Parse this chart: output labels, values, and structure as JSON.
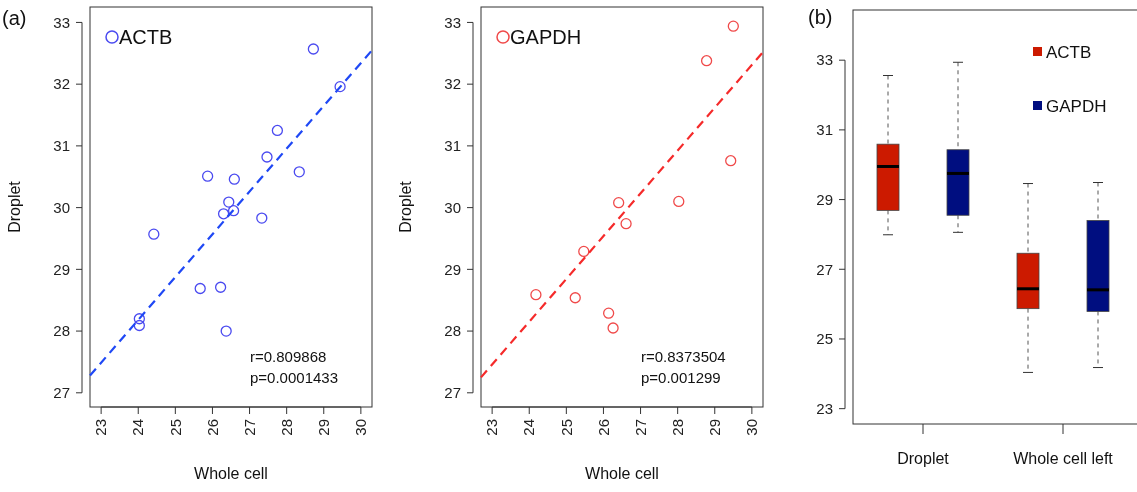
{
  "chart_data": [
    {
      "type": "scatter",
      "xlabel": "Whole cell",
      "ylabel": "Droplet",
      "xlim": [
        22.7,
        30.3
      ],
      "ylim": [
        26.77,
        33.25
      ],
      "xticks": [
        23,
        24,
        25,
        26,
        27,
        28,
        29,
        30
      ],
      "yticks": [
        27,
        28,
        29,
        30,
        31,
        32,
        33
      ],
      "grid": false,
      "legend": "top left",
      "annotations": [
        "(a)",
        "r=0.809868",
        "p=0.0001433"
      ],
      "series": [
        {
          "name": "ACTB",
          "marker": "circle",
          "color": "#4a4af0",
          "x": [
            28.72,
            29.44,
            27.75,
            27.47,
            28.34,
            25.87,
            26.59,
            26.44,
            26.3,
            26.57,
            27.33,
            24.42,
            25.67,
            26.22,
            24.03,
            24.03,
            26.37
          ],
          "values": [
            32.57,
            31.96,
            31.25,
            30.82,
            30.58,
            30.51,
            30.46,
            30.09,
            29.9,
            29.95,
            29.83,
            29.57,
            28.69,
            28.71,
            28.2,
            28.09,
            28.0
          ]
        },
        {
          "type": "line",
          "line_style": "dashed",
          "color": "#1f48f5",
          "x": [
            22.7,
            30.3
          ],
          "values": [
            27.28,
            32.55
          ]
        }
      ]
    },
    {
      "type": "scatter",
      "xlabel": "Whole cell",
      "ylabel": "Droplet",
      "xlim": [
        22.7,
        30.3
      ],
      "ylim": [
        26.77,
        33.25
      ],
      "xticks": [
        23,
        24,
        25,
        26,
        27,
        28,
        29,
        30
      ],
      "yticks": [
        27,
        28,
        29,
        30,
        31,
        32,
        33
      ],
      "grid": false,
      "legend": "top left",
      "annotations": [
        "r=0.8373504",
        "p=0.001299"
      ],
      "series": [
        {
          "name": "GAPDH",
          "marker": "circle",
          "color": "#f04a4a",
          "x": [
            29.5,
            28.78,
            29.43,
            28.03,
            26.41,
            26.61,
            25.47,
            24.18,
            25.24,
            26.14,
            26.26
          ],
          "values": [
            32.94,
            32.38,
            30.76,
            30.1,
            30.08,
            29.74,
            29.29,
            28.59,
            28.54,
            28.29,
            28.05
          ]
        },
        {
          "type": "line",
          "line_style": "dashed",
          "color": "#f52a2a",
          "x": [
            22.7,
            30.3
          ],
          "values": [
            27.25,
            32.52
          ]
        }
      ]
    },
    {
      "type": "box",
      "categories": [
        "Droplet",
        "Whole cell left"
      ],
      "ylim": [
        22.56,
        34.44
      ],
      "yticks": [
        23,
        25,
        27,
        29,
        31,
        33
      ],
      "grid": false,
      "legend": "top right",
      "annotations": [
        "(b)"
      ],
      "series": [
        {
          "name": "ACTB",
          "color": "#cc1a00",
          "boxes": [
            {
              "low": 27.99,
              "q1": 28.69,
              "median": 29.95,
              "q3": 30.59,
              "high": 32.56
            },
            {
              "low": 24.04,
              "q1": 25.87,
              "median": 26.44,
              "q3": 27.46,
              "high": 29.46
            }
          ]
        },
        {
          "name": "GAPDH",
          "color": "#000e80",
          "boxes": [
            {
              "low": 28.06,
              "q1": 28.55,
              "median": 29.75,
              "q3": 30.43,
              "high": 32.94
            },
            {
              "low": 24.18,
              "q1": 25.79,
              "median": 26.41,
              "q3": 28.4,
              "high": 29.49
            }
          ]
        }
      ]
    }
  ]
}
